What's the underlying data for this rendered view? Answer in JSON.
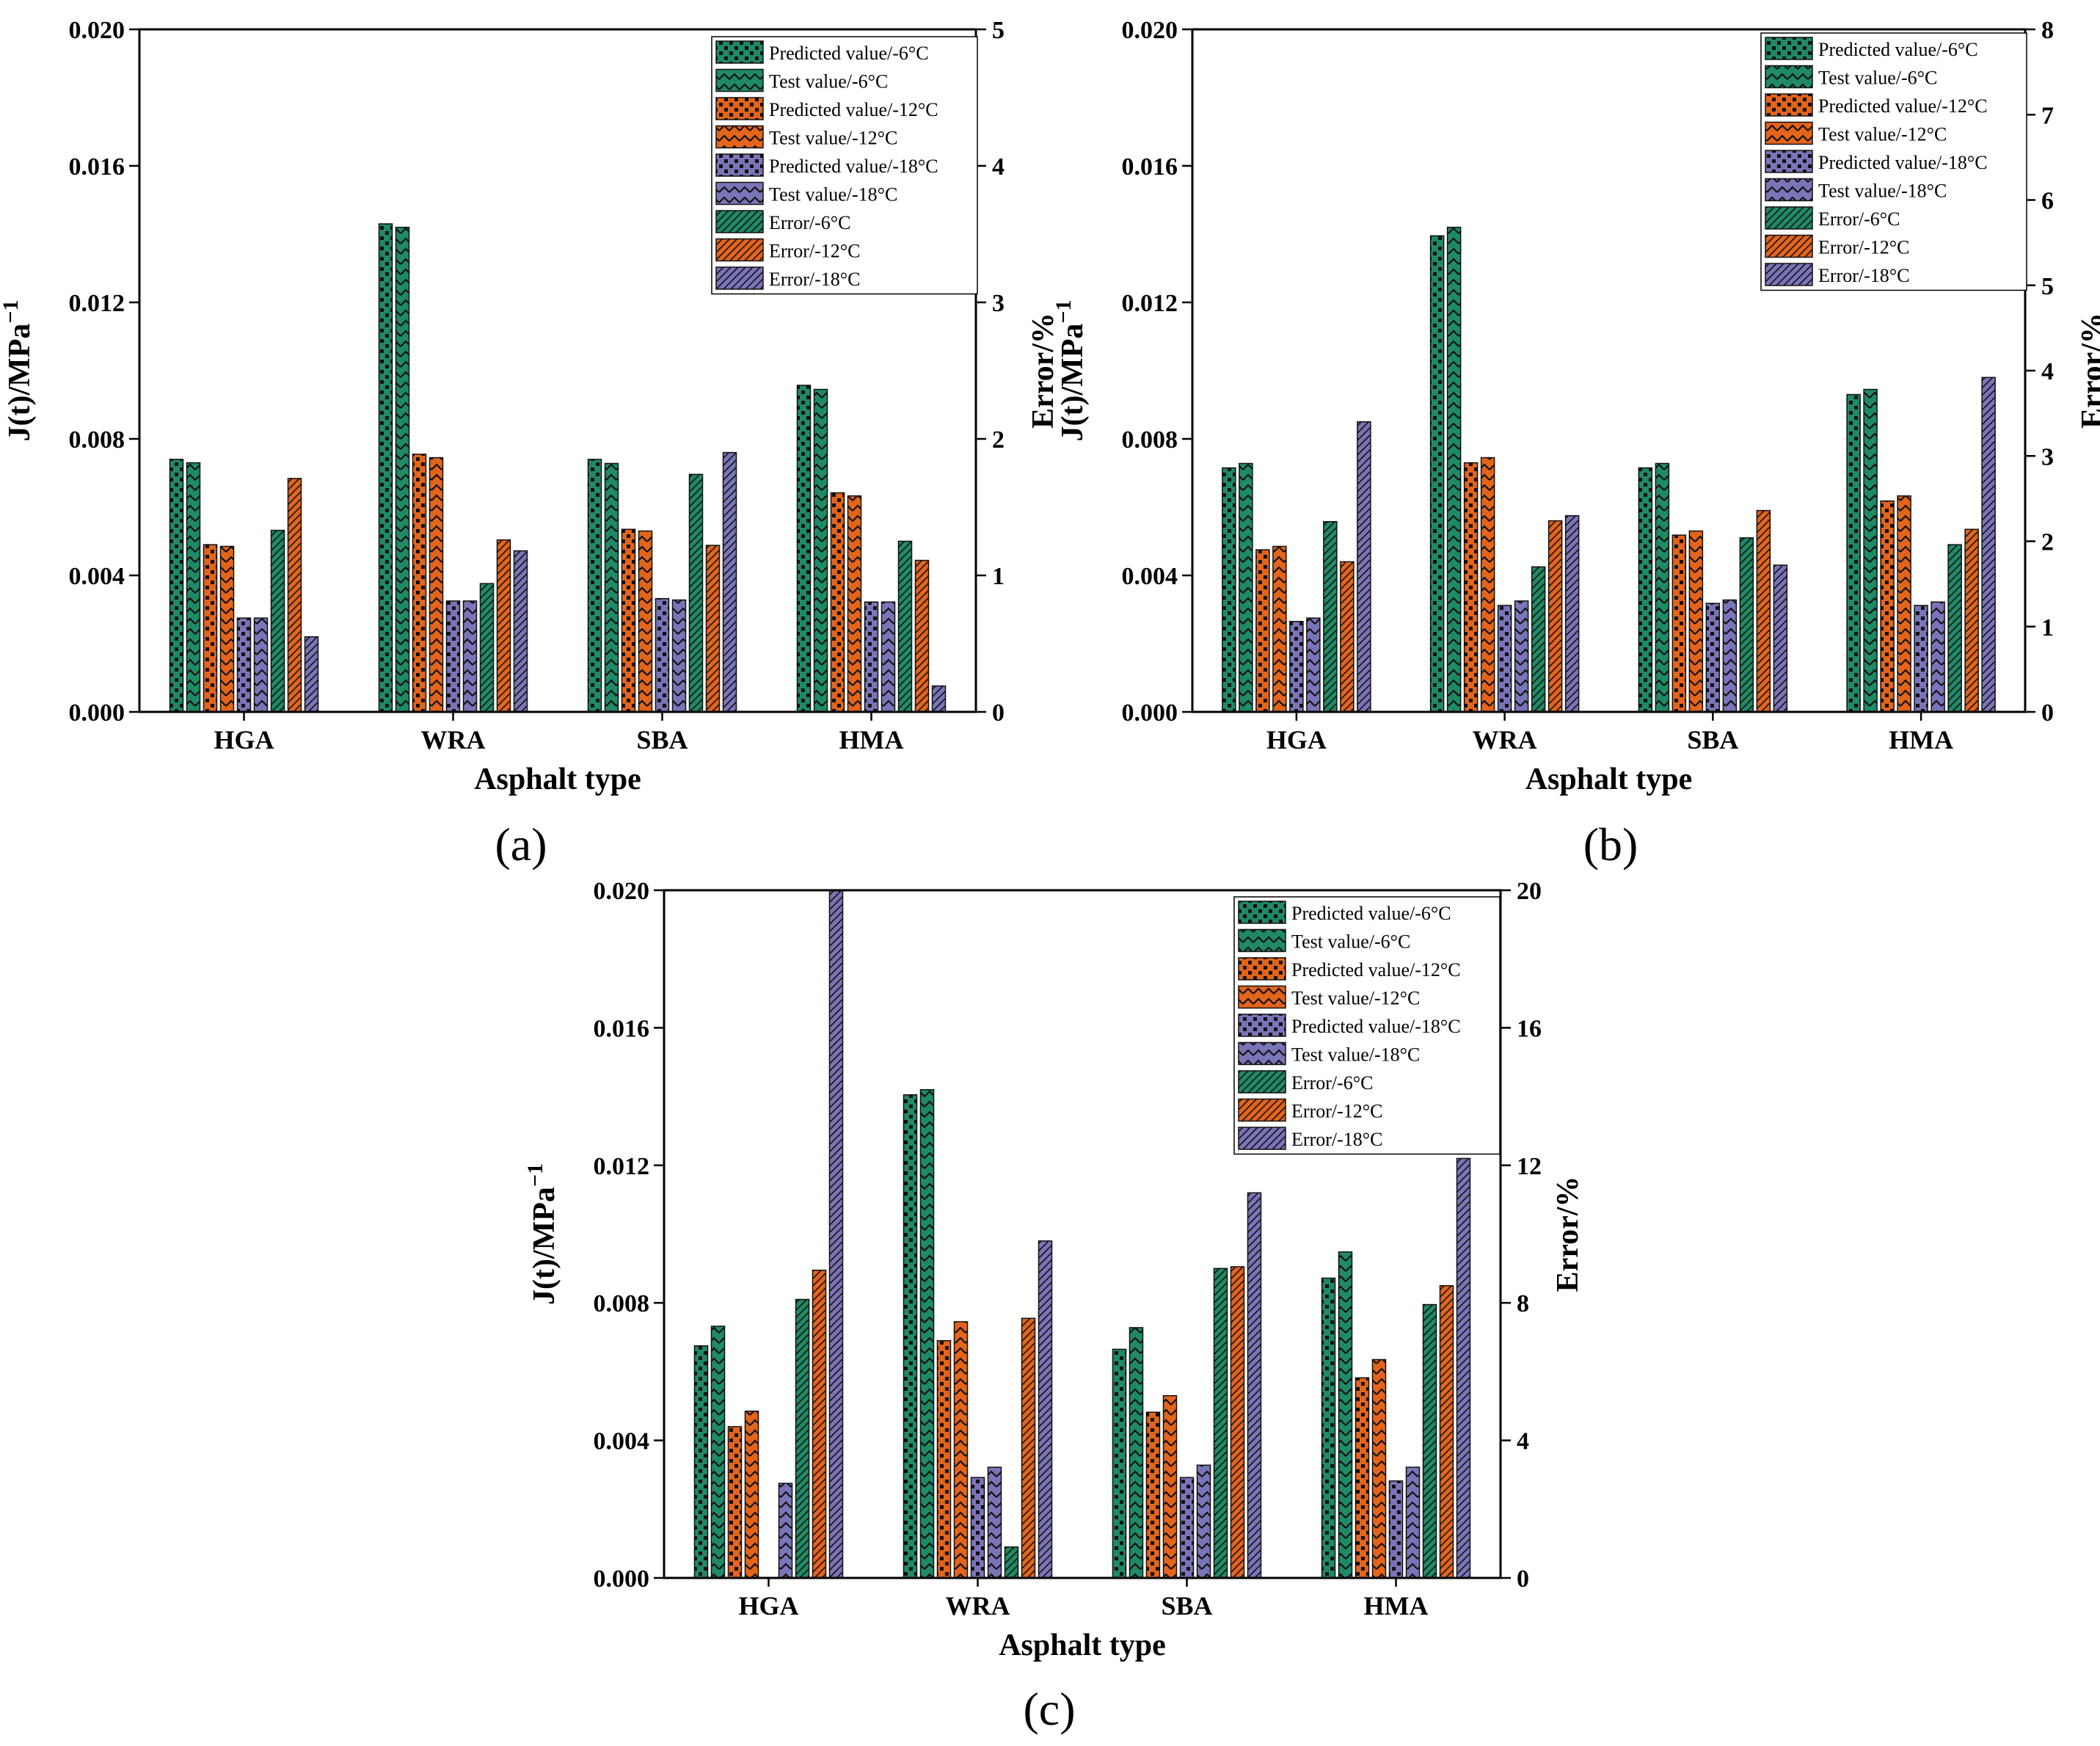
{
  "figure": {
    "panel_labels": [
      "(a)",
      "(b)",
      "(c)"
    ]
  },
  "colors": {
    "m6": "#1f8a65",
    "m12": "#e3641b",
    "m18": "#7a74b8"
  },
  "legend": [
    {
      "label": "Predicted value/-6°C",
      "color": "m6",
      "pattern": "checker"
    },
    {
      "label": "Test value/-6°C",
      "color": "m6",
      "pattern": "zigzag"
    },
    {
      "label": "Predicted value/-12°C",
      "color": "m12",
      "pattern": "checker"
    },
    {
      "label": "Test value/-12°C",
      "color": "m12",
      "pattern": "zigzag"
    },
    {
      "label": "Predicted value/-18°C",
      "color": "m18",
      "pattern": "checker"
    },
    {
      "label": "Test value/-18°C",
      "color": "m18",
      "pattern": "zigzag"
    },
    {
      "label": "Error/-6°C",
      "color": "m6",
      "pattern": "hatch"
    },
    {
      "label": "Error/-12°C",
      "color": "m12",
      "pattern": "hatch"
    },
    {
      "label": "Error/-18°C",
      "color": "m18",
      "pattern": "hatch"
    }
  ],
  "chart_data": [
    {
      "panel": "(a)",
      "type": "bar",
      "xlabel": "Asphalt type",
      "ylabel": "J(t)/MPa",
      "ylabel_sup": "−1",
      "y2label": "Error/%",
      "categories": [
        "HGA",
        "WRA",
        "SBA",
        "HMA"
      ],
      "ylim": [
        0,
        0.02
      ],
      "yticks": [
        "0.000",
        "0.004",
        "0.008",
        "0.012",
        "0.016",
        "0.020"
      ],
      "y2lim": [
        0,
        5
      ],
      "y2ticks": [
        "0",
        "1",
        "2",
        "3",
        "4",
        "5"
      ],
      "series": [
        {
          "name": "Predicted value/-6°C",
          "values": [
            0.0074,
            0.0143,
            0.0074,
            0.00957
          ]
        },
        {
          "name": "Test value/-6°C",
          "values": [
            0.0073,
            0.0142,
            0.00728,
            0.00945
          ]
        },
        {
          "name": "Predicted value/-12°C",
          "values": [
            0.0049,
            0.00755,
            0.00535,
            0.00642
          ]
        },
        {
          "name": "Test value/-12°C",
          "values": [
            0.00485,
            0.00745,
            0.0053,
            0.00633
          ]
        },
        {
          "name": "Predicted value/-18°C",
          "values": [
            0.00275,
            0.00325,
            0.00332,
            0.00322
          ]
        },
        {
          "name": "Test value/-18°C",
          "values": [
            0.00275,
            0.00325,
            0.00328,
            0.00322
          ]
        }
      ],
      "error_series": [
        {
          "name": "Error/-6°C",
          "values": [
            1.33,
            0.94,
            1.74,
            1.25
          ]
        },
        {
          "name": "Error/-12°C",
          "values": [
            1.71,
            1.26,
            1.22,
            1.11
          ]
        },
        {
          "name": "Error/-18°C",
          "values": [
            0.55,
            1.18,
            1.9,
            0.19
          ]
        }
      ]
    },
    {
      "panel": "(b)",
      "type": "bar",
      "xlabel": "Asphalt type",
      "ylabel": "J(t)/MPa",
      "ylabel_sup": "−1",
      "y2label": "Error/%",
      "categories": [
        "HGA",
        "WRA",
        "SBA",
        "HMA"
      ],
      "ylim": [
        0,
        0.02
      ],
      "yticks": [
        "0.000",
        "0.004",
        "0.008",
        "0.012",
        "0.016",
        "0.020"
      ],
      "y2lim": [
        0,
        8
      ],
      "y2ticks": [
        "0",
        "1",
        "2",
        "3",
        "4",
        "5",
        "6",
        "7",
        "8"
      ],
      "series": [
        {
          "name": "Predicted value/-6°C",
          "values": [
            0.00715,
            0.01395,
            0.00715,
            0.0093
          ]
        },
        {
          "name": "Test value/-6°C",
          "values": [
            0.00728,
            0.0142,
            0.00728,
            0.00945
          ]
        },
        {
          "name": "Predicted value/-12°C",
          "values": [
            0.00475,
            0.0073,
            0.00518,
            0.00618
          ]
        },
        {
          "name": "Test value/-12°C",
          "values": [
            0.00485,
            0.00745,
            0.0053,
            0.00633
          ]
        },
        {
          "name": "Predicted value/-18°C",
          "values": [
            0.00265,
            0.00312,
            0.00318,
            0.00312
          ]
        },
        {
          "name": "Test value/-18°C",
          "values": [
            0.00275,
            0.00325,
            0.00328,
            0.00322
          ]
        }
      ],
      "error_series": [
        {
          "name": "Error/-6°C",
          "values": [
            2.23,
            1.7,
            2.04,
            1.96
          ]
        },
        {
          "name": "Error/-12°C",
          "values": [
            1.76,
            2.24,
            2.36,
            2.14
          ]
        },
        {
          "name": "Error/-18°C",
          "values": [
            3.4,
            2.3,
            1.72,
            3.92
          ]
        }
      ]
    },
    {
      "panel": "(c)",
      "type": "bar",
      "xlabel": "Asphalt type",
      "ylabel": "J(t)/MPa",
      "ylabel_sup": "−1",
      "y2label": "Error/%",
      "categories": [
        "HGA",
        "WRA",
        "SBA",
        "HMA"
      ],
      "ylim": [
        0,
        0.02
      ],
      "yticks": [
        "0.000",
        "0.004",
        "0.008",
        "0.012",
        "0.016",
        "0.020"
      ],
      "y2lim": [
        0,
        20
      ],
      "y2ticks": [
        "0",
        "4",
        "8",
        "12",
        "16",
        "20"
      ],
      "series": [
        {
          "name": "Predicted value/-6°C",
          "values": [
            0.00675,
            0.01405,
            0.00665,
            0.00872
          ]
        },
        {
          "name": "Test value/-6°C",
          "values": [
            0.00732,
            0.0142,
            0.00728,
            0.00948
          ]
        },
        {
          "name": "Predicted value/-12°C",
          "values": [
            0.0044,
            0.0069,
            0.00482,
            0.00582
          ]
        },
        {
          "name": "Test value/-12°C",
          "values": [
            0.00485,
            0.00745,
            0.0053,
            0.00635
          ]
        },
        {
          "name": "Predicted value/-18°C",
          "values": [
            0.0,
            0.00292,
            0.00292,
            0.00282
          ]
        },
        {
          "name": "Test value/-18°C",
          "values": [
            0.00275,
            0.00322,
            0.00328,
            0.00322
          ]
        }
      ],
      "error_series": [
        {
          "name": "Error/-6°C",
          "values": [
            8.1,
            0.9,
            9.0,
            7.95
          ]
        },
        {
          "name": "Error/-12°C",
          "values": [
            8.95,
            7.55,
            9.05,
            8.5
          ]
        },
        {
          "name": "Error/-18°C",
          "values": [
            20.0,
            9.8,
            11.2,
            12.2
          ]
        }
      ]
    }
  ]
}
